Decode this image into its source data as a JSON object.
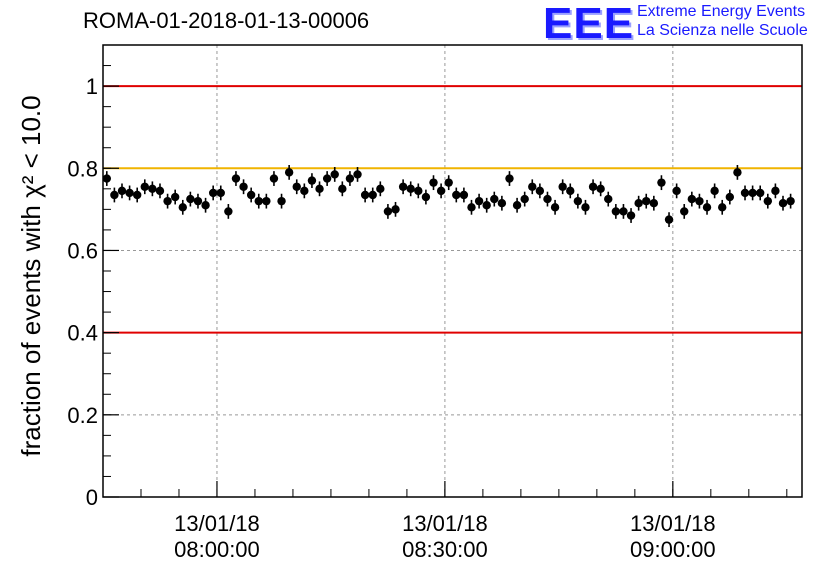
{
  "title": "ROMA-01-2018-01-13-00006",
  "logo": {
    "mark": "EEE",
    "line1": "Extreme Energy Events",
    "line2": "La Scienza nelle Scuole"
  },
  "chart_data": {
    "type": "scatter",
    "title": "ROMA-01-2018-01-13-00006",
    "ylabel": "fraction of events with χ² < 10.0",
    "xlabel": "",
    "ylim": [
      0,
      1.1
    ],
    "xlim": [
      "2018-01-13 07:45:00",
      "2018-01-13 09:17:00"
    ],
    "yticks": [
      "0",
      "0.2",
      "0.4",
      "0.6",
      "0.8",
      "1"
    ],
    "xticks": [
      {
        "x": "2018-01-13 08:00:00",
        "date": "13/01/18",
        "time": "08:00:00"
      },
      {
        "x": "2018-01-13 08:30:00",
        "date": "13/01/18",
        "time": "08:30:00"
      },
      {
        "x": "2018-01-13 09:00:00",
        "date": "13/01/18",
        "time": "09:00:00"
      }
    ],
    "grid": true,
    "reference_lines": [
      {
        "y": 1.0,
        "color": "#e00000"
      },
      {
        "y": 0.8,
        "color": "#f0b400"
      },
      {
        "y": 0.4,
        "color": "#e00000"
      }
    ],
    "series": [
      {
        "x_start": "2018-01-13 07:45:30",
        "x_step_seconds": 60,
        "error": 0.018,
        "values": [
          0.775,
          0.735,
          0.745,
          0.74,
          0.735,
          0.755,
          0.75,
          0.745,
          0.72,
          0.73,
          0.705,
          0.725,
          0.72,
          0.71,
          0.74,
          0.74,
          0.695,
          0.775,
          0.755,
          0.735,
          0.72,
          0.72,
          0.775,
          0.72,
          0.79,
          0.755,
          0.745,
          0.77,
          0.75,
          0.775,
          0.785,
          0.75,
          0.775,
          0.785,
          0.735,
          0.735,
          0.75,
          0.695,
          0.7,
          0.755,
          0.75,
          0.745,
          0.73,
          0.765,
          0.745,
          0.765,
          0.735,
          0.735,
          0.705,
          0.72,
          0.71,
          0.725,
          0.715,
          0.775,
          0.71,
          0.725,
          0.755,
          0.745,
          0.725,
          0.705,
          0.755,
          0.745,
          0.72,
          0.705,
          0.755,
          0.75,
          0.725,
          0.695,
          0.695,
          0.685,
          0.715,
          0.72,
          0.715,
          0.765,
          0.675,
          0.745,
          0.695,
          0.725,
          0.72,
          0.705,
          0.745,
          0.705,
          0.73,
          0.79,
          0.74,
          0.74,
          0.74,
          0.72,
          0.745,
          0.715,
          0.72
        ]
      }
    ]
  }
}
